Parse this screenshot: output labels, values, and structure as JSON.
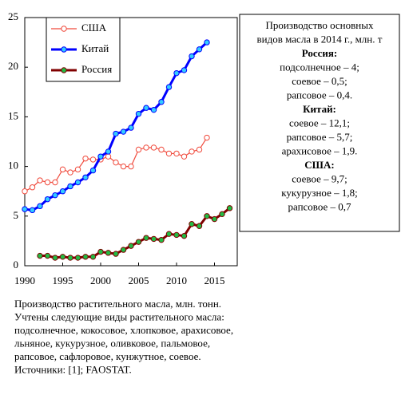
{
  "chart_data": {
    "type": "line",
    "xlim": [
      1990,
      2018
    ],
    "ylim": [
      0,
      25
    ],
    "xticks": [
      1990,
      1995,
      2000,
      2005,
      2010,
      2015
    ],
    "yticks": [
      0,
      5,
      10,
      15,
      20,
      25
    ],
    "legend": "upper left",
    "series": [
      {
        "name": "США",
        "color": "#f04a3c",
        "marker_fill": "#ffffff",
        "line_width": 1.2,
        "x": [
          1990,
          1991,
          1992,
          1993,
          1994,
          1995,
          1996,
          1997,
          1998,
          1999,
          2000,
          2001,
          2002,
          2003,
          2004,
          2005,
          2006,
          2007,
          2008,
          2009,
          2010,
          2011,
          2012,
          2013,
          2014
        ],
        "values": [
          7.5,
          7.9,
          8.6,
          8.4,
          8.4,
          9.7,
          9.4,
          9.7,
          10.8,
          10.7,
          10.7,
          11.0,
          10.4,
          10.0,
          10.0,
          11.7,
          11.9,
          11.9,
          11.7,
          11.3,
          11.3,
          11.0,
          11.5,
          11.7,
          12.9
        ]
      },
      {
        "name": "Китай",
        "color": "#0000ff",
        "marker_fill": "#33ccff",
        "line_width": 3,
        "x": [
          1990,
          1991,
          1992,
          1993,
          1994,
          1995,
          1996,
          1997,
          1998,
          1999,
          2000,
          2001,
          2002,
          2003,
          2004,
          2005,
          2006,
          2007,
          2008,
          2009,
          2010,
          2011,
          2012,
          2013,
          2014
        ],
        "values": [
          5.7,
          5.6,
          6.0,
          6.7,
          7.1,
          7.5,
          8.0,
          8.4,
          8.9,
          9.6,
          11.0,
          11.5,
          13.3,
          13.5,
          13.9,
          15.3,
          15.9,
          15.7,
          16.5,
          18.0,
          19.4,
          19.7,
          21.1,
          21.8,
          22.5
        ]
      },
      {
        "name": "Россия",
        "color": "#800000",
        "marker_fill": "#22bb44",
        "line_width": 3,
        "x": [
          1992,
          1993,
          1994,
          1995,
          1996,
          1997,
          1998,
          1999,
          2000,
          2001,
          2002,
          2003,
          2004,
          2005,
          2006,
          2007,
          2008,
          2009,
          2010,
          2011,
          2012,
          2013,
          2014,
          2015,
          2016,
          2017
        ],
        "values": [
          1.0,
          1.0,
          0.8,
          0.9,
          0.8,
          0.8,
          0.9,
          0.9,
          1.4,
          1.3,
          1.2,
          1.6,
          2.0,
          2.4,
          2.8,
          2.7,
          2.6,
          3.2,
          3.1,
          3.0,
          4.2,
          4.0,
          5.0,
          4.7,
          5.2,
          5.8
        ]
      }
    ],
    "notes": [
      {
        "text": "Производство основных",
        "bold": false
      },
      {
        "text": "видов масла в 2014 г., млн. т",
        "bold": false
      },
      {
        "text": "Россия:",
        "bold": true
      },
      {
        "text": "подсолнечное – 4;",
        "bold": false
      },
      {
        "text": "соевое – 0,5;",
        "bold": false
      },
      {
        "text": "рапсовое – 0,4.",
        "bold": false
      },
      {
        "text": "Китай:",
        "bold": true
      },
      {
        "text": "соевое – 12,1;",
        "bold": false
      },
      {
        "text": "рапсовое – 5,7;",
        "bold": false
      },
      {
        "text": "арахисовое – 1,9.",
        "bold": false
      },
      {
        "text": "США:",
        "bold": true
      },
      {
        "text": "соевое – 9,7;",
        "bold": false
      },
      {
        "text": "кукурузное  – 1,8;",
        "bold": false
      },
      {
        "text": "рапсовое – 0,7",
        "bold": false
      }
    ],
    "caption": [
      "Производство растительного масла, млн. тонн.",
      "Учтены следующие виды растительного масла:",
      "подсолнечное,  кокосовое, хлопковое, арахисовое,",
      "льняное, кукурузное, оливковое, пальмовое,",
      "рапсовое,  сафлоровое,  кунжутное, соевое.",
      "Источники: [1]; FAOSTAT."
    ]
  }
}
